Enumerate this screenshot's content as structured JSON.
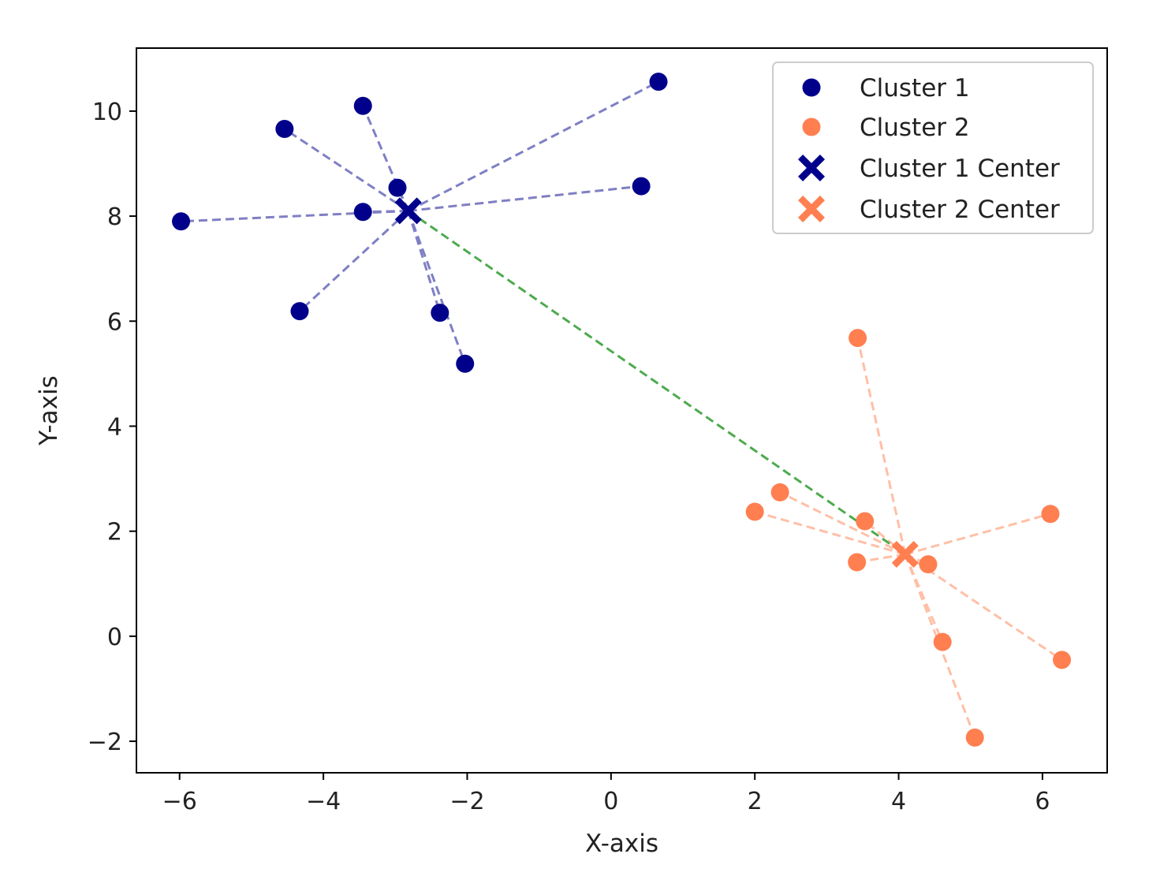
{
  "chart_data": {
    "type": "scatter",
    "title": "",
    "xlabel": "X-axis",
    "ylabel": "Y-axis",
    "xlim": [
      -6.6,
      6.9
    ],
    "ylim": [
      -2.6,
      11.2
    ],
    "xticks": [
      -6,
      -4,
      -2,
      0,
      2,
      4,
      6
    ],
    "xtick_labels": [
      "−6",
      "−4",
      "−2",
      "0",
      "2",
      "4",
      "6"
    ],
    "yticks": [
      -2,
      0,
      2,
      4,
      6,
      8,
      10
    ],
    "ytick_labels": [
      "−2",
      "0",
      "2",
      "4",
      "6",
      "8",
      "10"
    ],
    "grid": false,
    "legend_position": "top-right",
    "series": [
      {
        "name": "Cluster 1",
        "color": "#00008b",
        "marker": "circle",
        "points": [
          {
            "x": -5.98,
            "y": 7.9
          },
          {
            "x": -4.54,
            "y": 9.66
          },
          {
            "x": -3.45,
            "y": 10.1
          },
          {
            "x": -3.45,
            "y": 8.08
          },
          {
            "x": -2.97,
            "y": 8.54
          },
          {
            "x": -4.33,
            "y": 6.19
          },
          {
            "x": -2.38,
            "y": 6.16
          },
          {
            "x": -2.03,
            "y": 5.19
          },
          {
            "x": 0.42,
            "y": 8.57
          },
          {
            "x": 0.66,
            "y": 10.56
          }
        ]
      },
      {
        "name": "Cluster 2",
        "color": "#ff7f50",
        "marker": "circle",
        "points": [
          {
            "x": 3.43,
            "y": 5.68
          },
          {
            "x": 2.0,
            "y": 2.37
          },
          {
            "x": 2.35,
            "y": 2.74
          },
          {
            "x": 3.53,
            "y": 2.19
          },
          {
            "x": 3.42,
            "y": 1.41
          },
          {
            "x": 4.41,
            "y": 1.37
          },
          {
            "x": 6.11,
            "y": 2.33
          },
          {
            "x": 4.61,
            "y": -0.11
          },
          {
            "x": 6.27,
            "y": -0.45
          },
          {
            "x": 5.06,
            "y": -1.93
          }
        ]
      }
    ],
    "centers": [
      {
        "name": "Cluster 1 Center",
        "color": "#00008b",
        "marker": "X",
        "x": -2.82,
        "y": 8.1
      },
      {
        "name": "Cluster 2 Center",
        "color": "#ff7f50",
        "marker": "X",
        "x": 4.09,
        "y": 1.56
      }
    ],
    "connector_colors": {
      "cluster1": "#7f7fc5",
      "cluster2": "#ffbfa7",
      "between_centers": "#4daa4d"
    },
    "legend": [
      {
        "label": "Cluster 1",
        "color": "#00008b",
        "marker": "circle"
      },
      {
        "label": "Cluster 2",
        "color": "#ff7f50",
        "marker": "circle"
      },
      {
        "label": "Cluster 1 Center",
        "color": "#00008b",
        "marker": "X"
      },
      {
        "label": "Cluster 2 Center",
        "color": "#ff7f50",
        "marker": "X"
      }
    ]
  }
}
